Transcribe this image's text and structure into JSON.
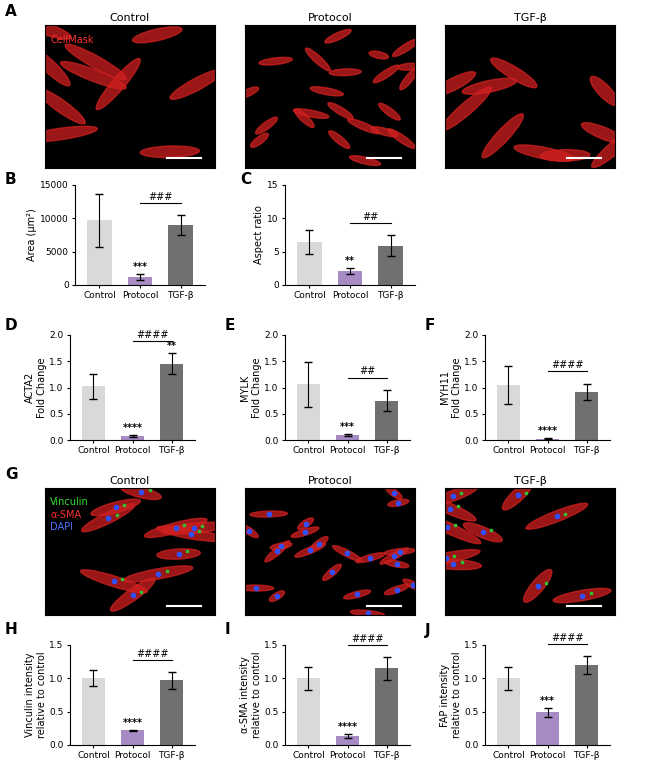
{
  "panels": [
    {
      "letter": "A",
      "type": "image",
      "titles": [
        "Control",
        "Protocol",
        "TGF-β"
      ],
      "stain_labels": [
        {
          "text": "CellMask",
          "color": "#ff3030"
        }
      ]
    },
    {
      "letter": "G",
      "type": "image",
      "titles": [
        "Control",
        "Protocol",
        "TGF-β"
      ],
      "stain_labels": [
        {
          "text": "Vinculin",
          "color": "#30e030"
        },
        {
          "text": "α-SMA",
          "color": "#ff3030"
        },
        {
          "text": "DAPI",
          "color": "#5070ff"
        }
      ]
    }
  ],
  "chart_data": [
    {
      "letter": "B",
      "type": "bar",
      "categories": [
        "Control",
        "Protocol",
        "TGF-β"
      ],
      "values": [
        9700,
        1200,
        9000
      ],
      "errors": [
        4000,
        500,
        1500
      ],
      "colors": [
        "#d9d9d9",
        "#a68bc4",
        "#707070"
      ],
      "y_label": "Area (µm²)",
      "ylim": [
        0,
        15000
      ],
      "yticks": [
        0,
        5000,
        10000,
        15000
      ],
      "annotations": [
        {
          "category": "Protocol",
          "text": "***"
        }
      ],
      "brackets": [
        {
          "from": "Protocol",
          "to": "TGF-β",
          "text": "###"
        }
      ]
    },
    {
      "letter": "C",
      "type": "bar",
      "categories": [
        "Control",
        "Protocol",
        "TGF-β"
      ],
      "values": [
        6.5,
        2.1,
        5.9
      ],
      "errors": [
        1.8,
        0.5,
        1.6
      ],
      "colors": [
        "#d9d9d9",
        "#a68bc4",
        "#707070"
      ],
      "y_label": "Aspect ratio",
      "ylim": [
        0,
        15
      ],
      "yticks": [
        0,
        5,
        10,
        15
      ],
      "annotations": [
        {
          "category": "Protocol",
          "text": "**"
        }
      ],
      "brackets": [
        {
          "from": "Protocol",
          "to": "TGF-β",
          "text": "##"
        }
      ]
    },
    {
      "letter": "D",
      "type": "bar",
      "categories": [
        "Control",
        "Protocol",
        "TGF-β"
      ],
      "values": [
        1.02,
        0.07,
        1.45
      ],
      "errors": [
        0.23,
        0.02,
        0.2
      ],
      "colors": [
        "#d9d9d9",
        "#a68bc4",
        "#707070"
      ],
      "y_label": "ACTA2\nFold Change",
      "ylim": [
        0,
        2.0
      ],
      "yticks": [
        {
          "value": 0,
          "label": "0.0"
        },
        {
          "value": 0.5,
          "label": "0.5"
        },
        {
          "value": 1.0,
          "label": "1.0"
        },
        {
          "value": 1.5,
          "label": "1.5"
        },
        {
          "value": 2.0,
          "label": "2.0"
        }
      ],
      "annotations": [
        {
          "category": "Protocol",
          "text": "****"
        },
        {
          "category": "TGF-β",
          "text": "**"
        }
      ],
      "brackets": [
        {
          "from": "Protocol",
          "to": "TGF-β",
          "text": "####"
        }
      ]
    },
    {
      "letter": "E",
      "type": "bar",
      "categories": [
        "Control",
        "Protocol",
        "TGF-β"
      ],
      "values": [
        1.06,
        0.09,
        0.75
      ],
      "errors": [
        0.43,
        0.02,
        0.2
      ],
      "colors": [
        "#d9d9d9",
        "#a68bc4",
        "#707070"
      ],
      "y_label": "MYLK\nFold Change",
      "ylim": [
        0,
        2.0
      ],
      "yticks": [
        {
          "value": 0,
          "label": "0.0"
        },
        {
          "value": 0.5,
          "label": "0.5"
        },
        {
          "value": 1.0,
          "label": "1.0"
        },
        {
          "value": 1.5,
          "label": "1.5"
        },
        {
          "value": 2.0,
          "label": "2.0"
        }
      ],
      "annotations": [
        {
          "category": "Protocol",
          "text": "***"
        }
      ],
      "brackets": [
        {
          "from": "Protocol",
          "to": "TGF-β",
          "text": "##"
        }
      ]
    },
    {
      "letter": "F",
      "type": "bar",
      "categories": [
        "Control",
        "Protocol",
        "TGF-β"
      ],
      "values": [
        1.05,
        0.02,
        0.92
      ],
      "errors": [
        0.36,
        0.01,
        0.15
      ],
      "colors": [
        "#d9d9d9",
        "#a68bc4",
        "#707070"
      ],
      "y_label": "MYH11\nFold Change",
      "ylim": [
        0,
        2.0
      ],
      "yticks": [
        {
          "value": 0,
          "label": "0.0"
        },
        {
          "value": 0.5,
          "label": "0.5"
        },
        {
          "value": 1.0,
          "label": "1.0"
        },
        {
          "value": 1.5,
          "label": "1.5"
        },
        {
          "value": 2.0,
          "label": "2.0"
        }
      ],
      "annotations": [
        {
          "category": "Protocol",
          "text": "****"
        }
      ],
      "brackets": [
        {
          "from": "Protocol",
          "to": "TGF-β",
          "text": "####"
        }
      ]
    },
    {
      "letter": "H",
      "type": "bar",
      "categories": [
        "Control",
        "Protocol",
        "TGF-β"
      ],
      "values": [
        1.0,
        0.22,
        0.97
      ],
      "errors": [
        0.12,
        0.01,
        0.13
      ],
      "colors": [
        "#d9d9d9",
        "#a68bc4",
        "#707070"
      ],
      "y_label": "Vinculin intensity\nrelative to control",
      "ylim": [
        0,
        1.5
      ],
      "yticks": [
        {
          "value": 0,
          "label": "0.0"
        },
        {
          "value": 0.5,
          "label": "0.5"
        },
        {
          "value": 1.0,
          "label": "1.0"
        },
        {
          "value": 1.5,
          "label": "1.5"
        }
      ],
      "annotations": [
        {
          "category": "Protocol",
          "text": "****"
        }
      ],
      "brackets": [
        {
          "from": "Protocol",
          "to": "TGF-β",
          "text": "####"
        }
      ]
    },
    {
      "letter": "I",
      "type": "bar",
      "categories": [
        "Control",
        "Protocol",
        "TGF-β"
      ],
      "values": [
        1.0,
        0.13,
        1.15
      ],
      "errors": [
        0.17,
        0.03,
        0.17
      ],
      "colors": [
        "#d9d9d9",
        "#a68bc4",
        "#707070"
      ],
      "y_label": "α-SMA intensity\nrelative to control",
      "ylim": [
        0,
        1.5
      ],
      "yticks": [
        {
          "value": 0,
          "label": "0.0"
        },
        {
          "value": 0.5,
          "label": "0.5"
        },
        {
          "value": 1.0,
          "label": "1.0"
        },
        {
          "value": 1.5,
          "label": "1.5"
        }
      ],
      "annotations": [
        {
          "category": "Protocol",
          "text": "****"
        }
      ],
      "brackets": [
        {
          "from": "Protocol",
          "to": "TGF-β",
          "text": "####"
        }
      ]
    },
    {
      "letter": "J",
      "type": "bar",
      "categories": [
        "Control",
        "Protocol",
        "TGF-β"
      ],
      "values": [
        1.0,
        0.49,
        1.2
      ],
      "errors": [
        0.17,
        0.07,
        0.13
      ],
      "colors": [
        "#d9d9d9",
        "#a68bc4",
        "#707070"
      ],
      "y_label": "FAP intensity\nrelative to control",
      "ylim": [
        0,
        1.5
      ],
      "yticks": [
        {
          "value": 0,
          "label": "0.0"
        },
        {
          "value": 0.5,
          "label": "0.5"
        },
        {
          "value": 1.0,
          "label": "1.0"
        },
        {
          "value": 1.5,
          "label": "1.5"
        }
      ],
      "annotations": [
        {
          "category": "Protocol",
          "text": "***"
        }
      ],
      "brackets": [
        {
          "from": "Protocol",
          "to": "TGF-β",
          "text": "####"
        }
      ]
    }
  ]
}
